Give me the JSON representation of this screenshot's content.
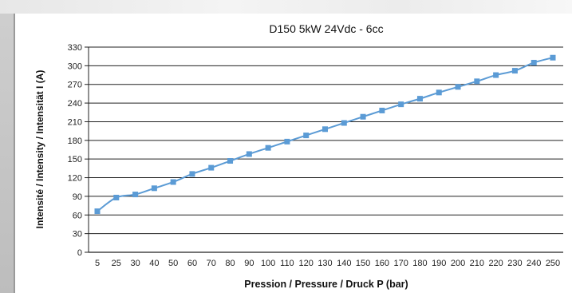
{
  "chart_data": {
    "type": "line",
    "title": "D150 5kW 24Vdc - 6cc",
    "xlabel": "Pression / Pressure / Druck P (bar)",
    "ylabel": "Intensité / Intensity / Intensität I (A)",
    "categories": [
      "5",
      "25",
      "30",
      "40",
      "50",
      "60",
      "70",
      "80",
      "90",
      "100",
      "110",
      "120",
      "130",
      "140",
      "150",
      "160",
      "170",
      "180",
      "190",
      "200",
      "210",
      "220",
      "230",
      "240",
      "250"
    ],
    "y_ticks": [
      "0",
      "30",
      "60",
      "90",
      "120",
      "150",
      "180",
      "210",
      "240",
      "270",
      "300",
      "330"
    ],
    "ylim": [
      0,
      330
    ],
    "grid": true,
    "series": [
      {
        "values": [
          66,
          88,
          93,
          103,
          113,
          126,
          136,
          147,
          158,
          168,
          178,
          188,
          198,
          208,
          218,
          228,
          238,
          247,
          257,
          266,
          275,
          285,
          292,
          305,
          313
        ]
      }
    ],
    "colors": {
      "series": "#5b9bd5",
      "grid": "#222222",
      "axis": "#222222"
    }
  }
}
